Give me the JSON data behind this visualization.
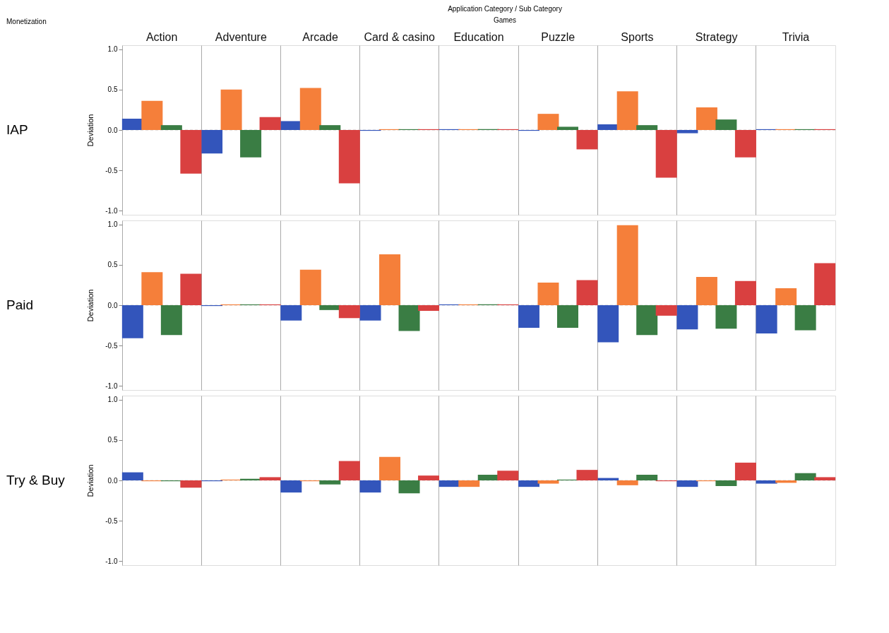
{
  "chart_data": [
    {
      "type": "bar",
      "title": "IAP",
      "ylabel": "Deviation",
      "annotations": [
        "Application Category / Sub Category",
        "Games",
        "Monetization"
      ],
      "categories": [
        "Action",
        "Adventure",
        "Arcade",
        "Card & casino",
        "Education",
        "Puzzle",
        "Sports",
        "Strategy",
        "Trivia"
      ],
      "series": [
        {
          "color": "#3355bb",
          "values": [
            0.14,
            -0.29,
            0.11,
            -0.01,
            0.01,
            -0.01,
            0.07,
            -0.04,
            0.01
          ]
        },
        {
          "color": "#f57f3a",
          "values": [
            0.36,
            0.5,
            0.52,
            0.01,
            0.01,
            0.2,
            0.48,
            0.28,
            0.01
          ]
        },
        {
          "color": "#3a7d44",
          "values": [
            0.06,
            -0.34,
            0.06,
            0.01,
            0.01,
            0.04,
            0.06,
            0.13,
            0.01
          ]
        },
        {
          "color": "#d94040",
          "values": [
            -0.54,
            0.16,
            -0.66,
            0.01,
            0.01,
            -0.24,
            -0.59,
            -0.34,
            0.01
          ]
        }
      ],
      "ylim": [
        -1.05,
        1.05
      ],
      "yticks": [
        {
          "value": -1,
          "label": "-1.0"
        },
        {
          "value": -0.5,
          "label": "-0.5"
        },
        {
          "value": 0,
          "label": "0.0"
        },
        {
          "value": 0.5,
          "label": "0.5"
        },
        {
          "value": 1,
          "label": "1.0"
        }
      ],
      "grid": "x",
      "ref_lines": [
        {
          "axis": "y",
          "value": 0,
          "color": "#cccccc",
          "line_style": "dashed"
        }
      ]
    },
    {
      "type": "bar",
      "title": "Paid",
      "ylabel": "Deviation",
      "series": [
        {
          "color": "#3355bb",
          "values": [
            -0.41,
            -0.01,
            -0.19,
            -0.19,
            0.01,
            -0.28,
            -0.46,
            -0.3,
            -0.35
          ]
        },
        {
          "color": "#f57f3a",
          "values": [
            0.41,
            0.01,
            0.44,
            0.63,
            0.01,
            0.28,
            0.99,
            0.35,
            0.21
          ]
        },
        {
          "color": "#3a7d44",
          "values": [
            -0.37,
            0.01,
            -0.06,
            -0.32,
            0.01,
            -0.28,
            -0.37,
            -0.29,
            -0.31
          ]
        },
        {
          "color": "#d94040",
          "values": [
            0.39,
            0.01,
            -0.16,
            -0.07,
            0.01,
            0.31,
            -0.13,
            0.3,
            0.52
          ]
        }
      ],
      "ylim": [
        -1.05,
        1.05
      ],
      "yticks": [
        {
          "value": -1,
          "label": "-1.0"
        },
        {
          "value": -0.5,
          "label": "-0.5"
        },
        {
          "value": 0,
          "label": "0.0"
        },
        {
          "value": 0.5,
          "label": "0.5"
        },
        {
          "value": 1,
          "label": "1.0"
        }
      ],
      "grid": "x",
      "tick_labels": "y",
      "ref_lines": [
        {
          "axis": "y",
          "value": 0,
          "color": "#cccccc",
          "line_style": "dashed"
        }
      ]
    },
    {
      "type": "bar",
      "title": "Try & Buy",
      "ylabel": "Deviation",
      "series": [
        {
          "color": "#3355bb",
          "values": [
            0.1,
            -0.01,
            -0.15,
            -0.15,
            -0.08,
            -0.08,
            0.03,
            -0.08,
            -0.04
          ]
        },
        {
          "color": "#f57f3a",
          "values": [
            -0.01,
            0.01,
            -0.01,
            0.29,
            -0.08,
            -0.04,
            -0.06,
            -0.01,
            -0.03
          ]
        },
        {
          "color": "#3a7d44",
          "values": [
            -0.01,
            0.02,
            -0.05,
            -0.16,
            0.07,
            0.01,
            0.07,
            -0.07,
            0.09
          ]
        },
        {
          "color": "#d94040",
          "values": [
            -0.09,
            0.04,
            0.24,
            0.06,
            0.12,
            0.13,
            -0.01,
            0.22,
            0.04
          ]
        }
      ],
      "ylim": [
        -1.05,
        1.05
      ],
      "yticks": [
        {
          "value": -1,
          "label": "-1.0"
        },
        {
          "value": -0.5,
          "label": "-0.5"
        },
        {
          "value": 0,
          "label": "0.0"
        },
        {
          "value": 0.5,
          "label": "0.5"
        },
        {
          "value": 1,
          "label": "1.0"
        }
      ],
      "grid": "x",
      "tick_labels": "y",
      "ref_lines": [
        {
          "axis": "y",
          "value": 0,
          "color": "#cccccc",
          "line_style": "dashed"
        }
      ]
    }
  ]
}
